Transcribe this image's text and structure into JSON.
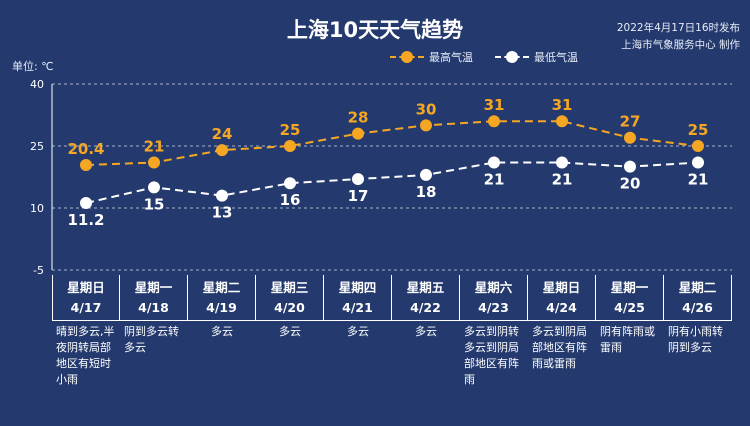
{
  "header": {
    "title": "上海10天天气趋势",
    "publish_time": "2022年4月17日16时发布",
    "publisher": "上海市气象服务中心 制作",
    "unit_label": "单位: ℃"
  },
  "colors": {
    "background": "#243a6e",
    "high": "#f5a623",
    "low": "#ffffff",
    "grid": "#ffffff"
  },
  "chart_data": {
    "type": "line",
    "title": "上海10天天气趋势",
    "ylabel": "单位: ℃",
    "ylim": [
      -5,
      40
    ],
    "yticks": [
      40,
      25,
      10,
      -5
    ],
    "grid": "horizontal dashed",
    "legend_position": "top-right",
    "categories": [
      "4/17",
      "4/18",
      "4/19",
      "4/20",
      "4/21",
      "4/22",
      "4/23",
      "4/24",
      "4/25",
      "4/26"
    ],
    "series": [
      {
        "name": "最高气温",
        "values": [
          20.4,
          21,
          24,
          25,
          28,
          30,
          31,
          31,
          27,
          25
        ],
        "labels": [
          "20.4",
          "21",
          "24",
          "25",
          "28",
          "30",
          "31",
          "31",
          "27",
          "25"
        ]
      },
      {
        "name": "最低气温",
        "values": [
          11.2,
          15,
          13,
          16,
          17,
          18,
          21,
          21,
          20,
          21
        ],
        "labels": [
          "11.2",
          "15",
          "13",
          "16",
          "17",
          "18",
          "21",
          "21",
          "20",
          "21"
        ]
      }
    ]
  },
  "days": [
    {
      "weekday": "星期日",
      "date": "4/17",
      "weather": "晴到多云,半夜阴转局部地区有短时小雨",
      "align": "left"
    },
    {
      "weekday": "星期一",
      "date": "4/18",
      "weather": "阴到多云转多云",
      "align": "left"
    },
    {
      "weekday": "星期二",
      "date": "4/19",
      "weather": "多云",
      "align": "center"
    },
    {
      "weekday": "星期三",
      "date": "4/20",
      "weather": "多云",
      "align": "center"
    },
    {
      "weekday": "星期四",
      "date": "4/21",
      "weather": "多云",
      "align": "center"
    },
    {
      "weekday": "星期五",
      "date": "4/22",
      "weather": "多云",
      "align": "center"
    },
    {
      "weekday": "星期六",
      "date": "4/23",
      "weather": "多云到阴转多云到阴局部地区有阵雨",
      "align": "left"
    },
    {
      "weekday": "星期日",
      "date": "4/24",
      "weather": "多云到阴局部地区有阵雨或雷雨",
      "align": "left"
    },
    {
      "weekday": "星期一",
      "date": "4/25",
      "weather": "阴有阵雨或雷雨",
      "align": "left"
    },
    {
      "weekday": "星期二",
      "date": "4/26",
      "weather": "阴有小雨转阴到多云",
      "align": "left"
    }
  ]
}
